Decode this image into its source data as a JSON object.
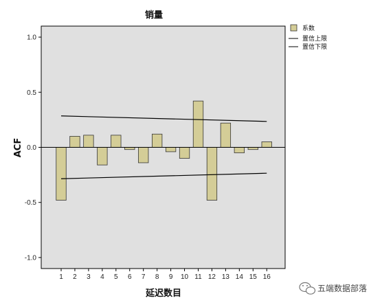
{
  "chart_data": {
    "type": "bar",
    "title": "销量",
    "xlabel": "延迟数目",
    "ylabel": "ACF",
    "categories": [
      "1",
      "2",
      "3",
      "4",
      "5",
      "6",
      "7",
      "8",
      "9",
      "10",
      "11",
      "12",
      "13",
      "14",
      "15",
      "16"
    ],
    "series": [
      {
        "name": "系数",
        "values": [
          -0.48,
          0.1,
          0.11,
          -0.16,
          0.11,
          -0.02,
          -0.14,
          0.12,
          -0.04,
          -0.1,
          0.42,
          -0.48,
          0.22,
          -0.05,
          -0.02,
          0.05
        ]
      }
    ],
    "confidence_upper": {
      "name": "置信上限",
      "start": 0.285,
      "end": 0.235
    },
    "confidence_lower": {
      "name": "置信下限",
      "start": -0.285,
      "end": -0.235
    },
    "ylim": [
      -1.1,
      1.1
    ],
    "yticks": [
      "1.0",
      "0.5",
      "0.0",
      "-0.5",
      "-1.0"
    ],
    "ytick_values": [
      1.0,
      0.5,
      0.0,
      -0.5,
      -1.0
    ],
    "grid": false,
    "legend_position": "top-right"
  },
  "colors": {
    "plot_background": "#e0e0e0",
    "bar_fill": "#d4cd97",
    "bar_stroke": "#333333",
    "line": "#000000"
  },
  "watermark": {
    "text": "五端数据部落",
    "icon": "wechat-icon"
  }
}
